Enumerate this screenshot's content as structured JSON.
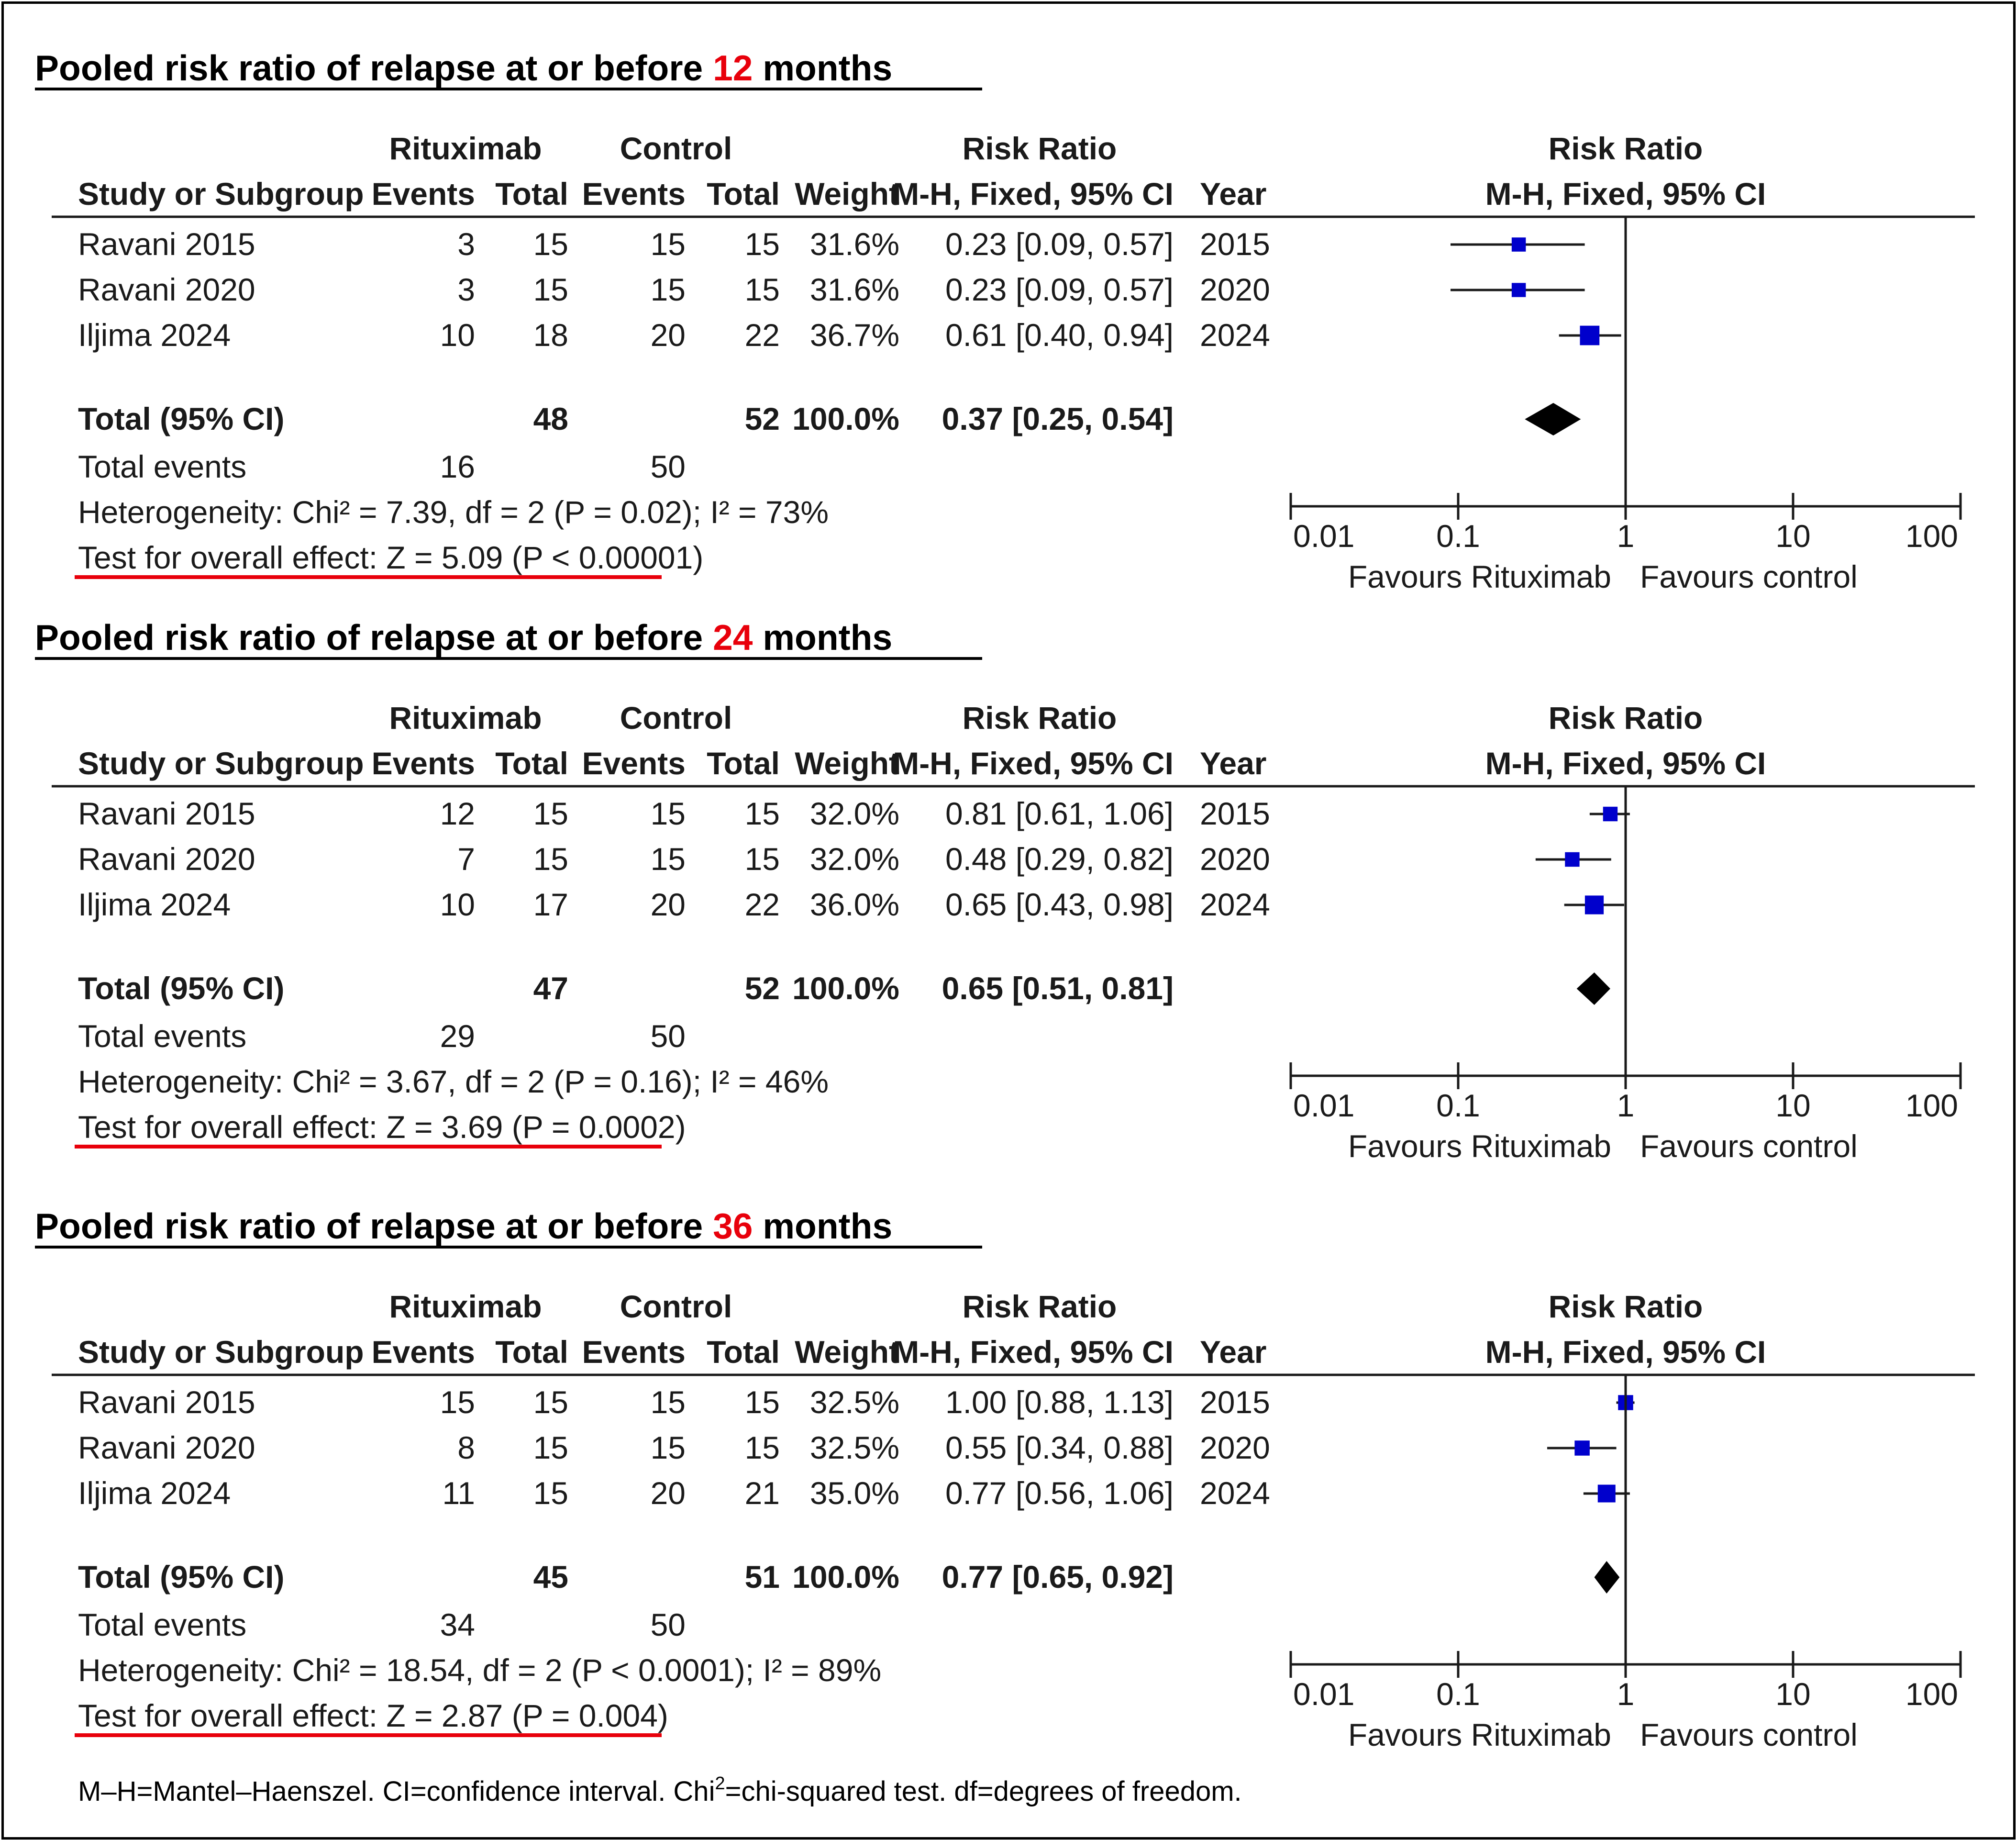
{
  "colors": {
    "accent": "#e8000b",
    "marker": "#0000cc",
    "text": "#1a1a1a",
    "diamond": "#000000"
  },
  "headers": {
    "group_rituximab": "Rituximab",
    "group_control": "Control",
    "group_rr": "Risk Ratio",
    "study": "Study or Subgroup",
    "events": "Events",
    "total": "Total",
    "weight": "Weight",
    "mh": "M-H, Fixed, 95% CI",
    "year": "Year",
    "plot_title": "Risk Ratio",
    "plot_sub": "M-H, Fixed, 95% CI"
  },
  "axis": {
    "ticks": [
      "0.01",
      "0.1",
      "1",
      "10",
      "100"
    ],
    "favours_left": "Favours Rituximab",
    "favours_right": "Favours control"
  },
  "chart_data": [
    {
      "type": "forest",
      "title_pre": "Pooled risk ratio of relapse at or before ",
      "title_num": "12",
      "title_post": " months",
      "xscale": "log",
      "xlim": [
        0.01,
        100
      ],
      "studies": [
        {
          "name": "Ravani 2015",
          "e1": "3",
          "t1": "15",
          "e2": "15",
          "t2": "15",
          "weight": "31.6%",
          "ci": "0.23 [0.09, 0.57]",
          "year": "2015",
          "rr": 0.23,
          "lo": 0.09,
          "hi": 0.57,
          "w": 31.6
        },
        {
          "name": "Ravani 2020",
          "e1": "3",
          "t1": "15",
          "e2": "15",
          "t2": "15",
          "weight": "31.6%",
          "ci": "0.23 [0.09, 0.57]",
          "year": "2020",
          "rr": 0.23,
          "lo": 0.09,
          "hi": 0.57,
          "w": 31.6
        },
        {
          "name": "Iljima 2024",
          "e1": "10",
          "t1": "18",
          "e2": "20",
          "t2": "22",
          "weight": "36.7%",
          "ci": "0.61 [0.40, 0.94]",
          "year": "2024",
          "rr": 0.61,
          "lo": 0.4,
          "hi": 0.94,
          "w": 36.7
        }
      ],
      "total": {
        "label": "Total (95% CI)",
        "t1": "48",
        "t2": "52",
        "weight": "100.0%",
        "ci": "0.37 [0.25, 0.54]",
        "rr": 0.37,
        "lo": 0.25,
        "hi": 0.54
      },
      "events": {
        "label": "Total events",
        "e1": "16",
        "e2": "50"
      },
      "heterogeneity": "Heterogeneity: Chi² = 7.39, df = 2 (P = 0.02); I² = 73%",
      "overall": "Test for overall effect: Z = 5.09 (P < 0.00001)"
    },
    {
      "type": "forest",
      "title_pre": "Pooled risk ratio of relapse at or before ",
      "title_num": "24",
      "title_post": " months",
      "xscale": "log",
      "xlim": [
        0.01,
        100
      ],
      "studies": [
        {
          "name": "Ravani 2015",
          "e1": "12",
          "t1": "15",
          "e2": "15",
          "t2": "15",
          "weight": "32.0%",
          "ci": "0.81 [0.61, 1.06]",
          "year": "2015",
          "rr": 0.81,
          "lo": 0.61,
          "hi": 1.06,
          "w": 32.0
        },
        {
          "name": "Ravani 2020",
          "e1": "7",
          "t1": "15",
          "e2": "15",
          "t2": "15",
          "weight": "32.0%",
          "ci": "0.48 [0.29, 0.82]",
          "year": "2020",
          "rr": 0.48,
          "lo": 0.29,
          "hi": 0.82,
          "w": 32.0
        },
        {
          "name": "Iljima 2024",
          "e1": "10",
          "t1": "17",
          "e2": "20",
          "t2": "22",
          "weight": "36.0%",
          "ci": "0.65 [0.43, 0.98]",
          "year": "2024",
          "rr": 0.65,
          "lo": 0.43,
          "hi": 0.98,
          "w": 36.0
        }
      ],
      "total": {
        "label": "Total (95% CI)",
        "t1": "47",
        "t2": "52",
        "weight": "100.0%",
        "ci": "0.65 [0.51, 0.81]",
        "rr": 0.65,
        "lo": 0.51,
        "hi": 0.81
      },
      "events": {
        "label": "Total events",
        "e1": "29",
        "e2": "50"
      },
      "heterogeneity": "Heterogeneity: Chi² = 3.67, df = 2 (P = 0.16); I² = 46%",
      "overall": "Test for overall effect: Z = 3.69 (P = 0.0002)"
    },
    {
      "type": "forest",
      "title_pre": "Pooled risk ratio of relapse at or before ",
      "title_num": "36",
      "title_post": " months",
      "xscale": "log",
      "xlim": [
        0.01,
        100
      ],
      "studies": [
        {
          "name": "Ravani 2015",
          "e1": "15",
          "t1": "15",
          "e2": "15",
          "t2": "15",
          "weight": "32.5%",
          "ci": "1.00 [0.88, 1.13]",
          "year": "2015",
          "rr": 1.0,
          "lo": 0.88,
          "hi": 1.13,
          "w": 32.5
        },
        {
          "name": "Ravani 2020",
          "e1": "8",
          "t1": "15",
          "e2": "15",
          "t2": "15",
          "weight": "32.5%",
          "ci": "0.55 [0.34, 0.88]",
          "year": "2020",
          "rr": 0.55,
          "lo": 0.34,
          "hi": 0.88,
          "w": 32.5
        },
        {
          "name": "Iljima 2024",
          "e1": "11",
          "t1": "15",
          "e2": "20",
          "t2": "21",
          "weight": "35.0%",
          "ci": "0.77 [0.56, 1.06]",
          "year": "2024",
          "rr": 0.77,
          "lo": 0.56,
          "hi": 1.06,
          "w": 35.0
        }
      ],
      "total": {
        "label": "Total (95% CI)",
        "t1": "45",
        "t2": "51",
        "weight": "100.0%",
        "ci": "0.77 [0.65, 0.92]",
        "rr": 0.77,
        "lo": 0.65,
        "hi": 0.92
      },
      "events": {
        "label": "Total events",
        "e1": "34",
        "e2": "50"
      },
      "heterogeneity": "Heterogeneity: Chi² = 18.54, df = 2 (P < 0.0001); I² = 89%",
      "overall": "Test for overall effect: Z = 2.87 (P = 0.004)"
    }
  ],
  "footnote": {
    "part1": "M–H=Mantel–Haenszel. CI=confidence interval. Chi",
    "sup": "2",
    "part2": "=chi-squared test. df=degrees of freedom."
  }
}
